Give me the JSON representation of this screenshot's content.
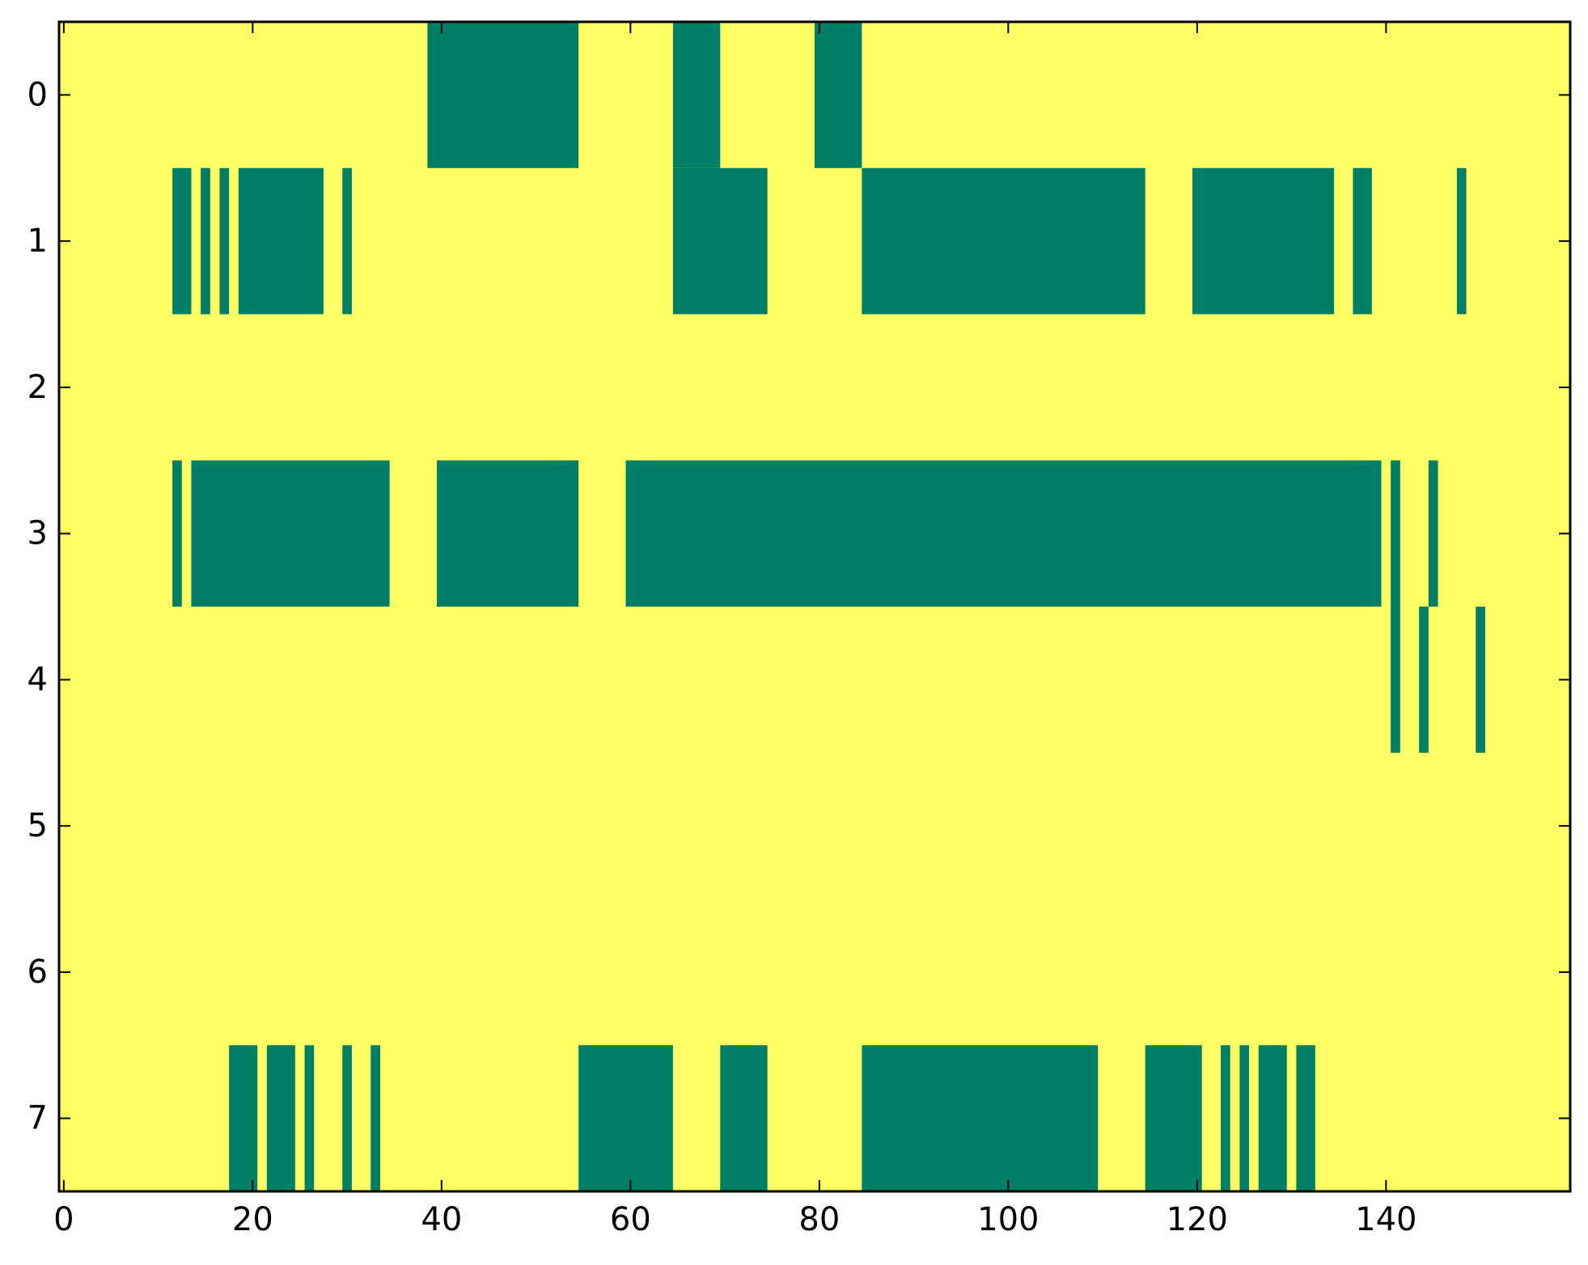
{
  "chart_data": {
    "type": "heatmap",
    "title": "",
    "xlabel": "",
    "ylabel": "",
    "xlim": [
      -0.5,
      159.5
    ],
    "ylim": [
      -0.5,
      7.5
    ],
    "y_inverted": true,
    "grid": false,
    "legend": "none",
    "colors": {
      "zero": "#007f66",
      "one": "#ffff66"
    },
    "background_value": 1,
    "xticks": [
      0,
      20,
      40,
      60,
      80,
      100,
      120,
      140
    ],
    "yticks": [
      0,
      1,
      2,
      3,
      4,
      5,
      6,
      7
    ],
    "xtick_labels": [
      "0",
      "20",
      "40",
      "60",
      "80",
      "100",
      "120",
      "140"
    ],
    "ytick_labels": [
      "0",
      "1",
      "2",
      "3",
      "4",
      "5",
      "6",
      "7"
    ],
    "zero_runs": [
      {
        "row": 0,
        "start": 39,
        "end": 54
      },
      {
        "row": 0,
        "start": 65,
        "end": 69
      },
      {
        "row": 0,
        "start": 80,
        "end": 84
      },
      {
        "row": 1,
        "start": 12,
        "end": 13
      },
      {
        "row": 1,
        "start": 15,
        "end": 15
      },
      {
        "row": 1,
        "start": 17,
        "end": 17
      },
      {
        "row": 1,
        "start": 19,
        "end": 27
      },
      {
        "row": 1,
        "start": 30,
        "end": 30
      },
      {
        "row": 1,
        "start": 65,
        "end": 74
      },
      {
        "row": 1,
        "start": 85,
        "end": 114
      },
      {
        "row": 1,
        "start": 120,
        "end": 134
      },
      {
        "row": 1,
        "start": 137,
        "end": 138
      },
      {
        "row": 1,
        "start": 148,
        "end": 148
      },
      {
        "row": 3,
        "start": 12,
        "end": 12
      },
      {
        "row": 3,
        "start": 14,
        "end": 34
      },
      {
        "row": 3,
        "start": 40,
        "end": 54
      },
      {
        "row": 3,
        "start": 60,
        "end": 139
      },
      {
        "row": 3,
        "start": 141,
        "end": 141
      },
      {
        "row": 3,
        "start": 145,
        "end": 145
      },
      {
        "row": 4,
        "start": 141,
        "end": 141
      },
      {
        "row": 4,
        "start": 144,
        "end": 144
      },
      {
        "row": 4,
        "start": 150,
        "end": 150
      },
      {
        "row": 7,
        "start": 18,
        "end": 20
      },
      {
        "row": 7,
        "start": 22,
        "end": 24
      },
      {
        "row": 7,
        "start": 26,
        "end": 26
      },
      {
        "row": 7,
        "start": 30,
        "end": 30
      },
      {
        "row": 7,
        "start": 33,
        "end": 33
      },
      {
        "row": 7,
        "start": 55,
        "end": 64
      },
      {
        "row": 7,
        "start": 70,
        "end": 74
      },
      {
        "row": 7,
        "start": 85,
        "end": 109
      },
      {
        "row": 7,
        "start": 115,
        "end": 120
      },
      {
        "row": 7,
        "start": 123,
        "end": 123
      },
      {
        "row": 7,
        "start": 125,
        "end": 125
      },
      {
        "row": 7,
        "start": 127,
        "end": 129
      },
      {
        "row": 7,
        "start": 131,
        "end": 132
      }
    ]
  }
}
